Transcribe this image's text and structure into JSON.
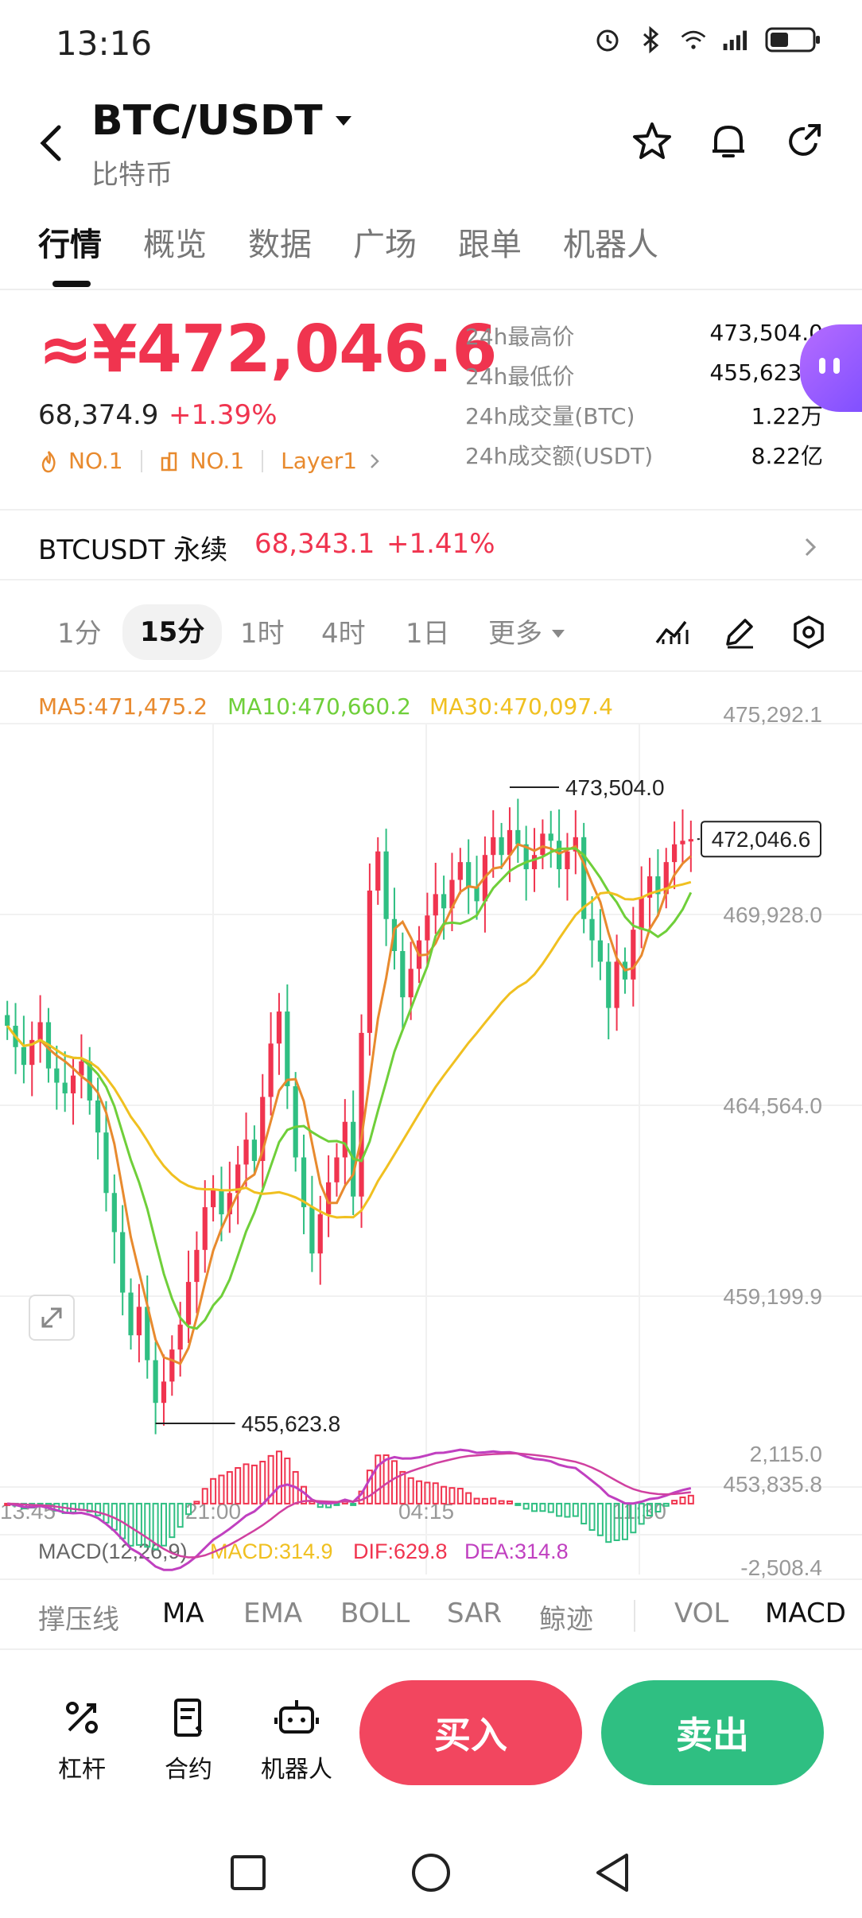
{
  "status_bar": {
    "time": "13:16"
  },
  "header": {
    "pair": "BTC/USDT",
    "subtitle": "比特币"
  },
  "tabs": [
    {
      "label": "行情",
      "active": true
    },
    {
      "label": "概览"
    },
    {
      "label": "数据"
    },
    {
      "label": "广场"
    },
    {
      "label": "跟单"
    },
    {
      "label": "机器人"
    }
  ],
  "price": {
    "main": "≈¥472,046.6",
    "usd": "68,374.9",
    "change": "+1.39%",
    "badges": [
      "NO.1",
      "NO.1",
      "Layer1"
    ]
  },
  "stats": [
    {
      "label": "24h最高价",
      "value": "473,504.0"
    },
    {
      "label": "24h最低价",
      "value": "455,623.8"
    },
    {
      "label": "24h成交量(BTC)",
      "value": "1.22万"
    },
    {
      "label": "24h成交额(USDT)",
      "value": "8.22亿"
    }
  ],
  "perp": {
    "name": "BTCUSDT 永续",
    "price": "68,343.1",
    "change": "+1.41%"
  },
  "intervals": [
    "1分",
    "15分",
    "1时",
    "4时",
    "1日",
    "更多"
  ],
  "active_interval": "15分",
  "ma_legend": {
    "ma5": "MA5:471,475.2",
    "ma10": "MA10:470,660.2",
    "ma30": "MA30:470,097.4"
  },
  "chart_data": {
    "type": "candlestick",
    "y_ticks": [
      "475,292.1",
      "469,928.0",
      "464,564.0",
      "459,199.9",
      "453,835.8"
    ],
    "x_ticks": [
      "13:45",
      "21:00",
      "04:15",
      "11:30"
    ],
    "high_label": "473,504.0",
    "low_label": "455,623.8",
    "last_price": "472,046.6",
    "ylim": [
      453835.8,
      475292.1
    ],
    "close_series": [
      466800,
      466200,
      465700,
      466400,
      466900,
      465600,
      465200,
      464900,
      465400,
      465800,
      464700,
      463800,
      462100,
      461000,
      459300,
      458100,
      458900,
      457400,
      456200,
      456800,
      457700,
      458400,
      459600,
      460500,
      461700,
      462200,
      461500,
      462100,
      462900,
      463600,
      463000,
      464800,
      466300,
      467200,
      465100,
      463100,
      461700,
      460400,
      461500,
      462400,
      463100,
      464100,
      462000,
      466600,
      470600,
      471700,
      469800,
      468900,
      467600,
      468400,
      469200,
      469900,
      470500,
      470100,
      470900,
      471400,
      470700,
      470300,
      471600,
      472100,
      471600,
      472300,
      471900,
      471200,
      471600,
      472200,
      472000,
      471200,
      471700,
      472100,
      469800,
      469200,
      468600,
      467300,
      468600,
      468100,
      469500,
      470400,
      471000,
      470500,
      471400,
      471900,
      472000,
      472046.6
    ],
    "macd": {
      "label": "MACD(12,26,9)",
      "macd": "MACD:314.9",
      "dif": "DIF:629.8",
      "dea": "DEA:314.8",
      "ylim": [
        -2508.4,
        2115.0
      ],
      "y_ticks": [
        "2,115.0",
        "-2,508.4"
      ]
    }
  },
  "indicators": [
    "撑压线",
    "MA",
    "EMA",
    "BOLL",
    "SAR",
    "鲸迹",
    "VOL",
    "MACD"
  ],
  "actions": [
    {
      "label": "杠杆",
      "icon": "leverage-icon"
    },
    {
      "label": "合约",
      "icon": "contract-icon"
    },
    {
      "label": "机器人",
      "icon": "robot-icon"
    }
  ],
  "buy_label": "买入",
  "sell_label": "卖出",
  "colors": {
    "up": "#f0344f",
    "down": "#2fbf82",
    "ma5": "#e88a2e",
    "ma10": "#6fcf3a",
    "ma30": "#f0c020",
    "dif": "#c040c0",
    "dea": "#d040a0"
  }
}
